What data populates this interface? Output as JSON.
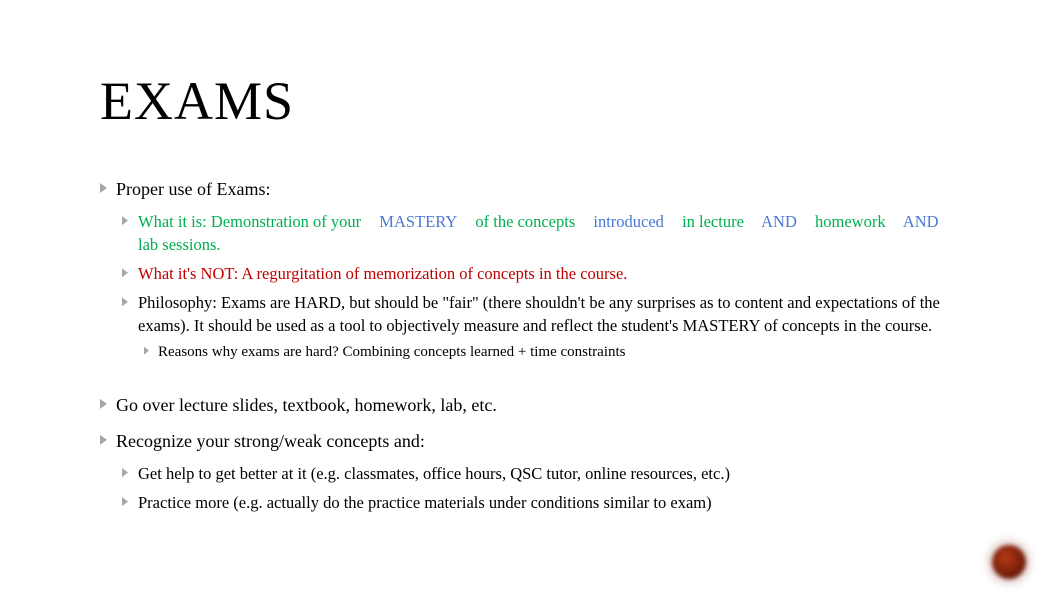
{
  "title": "EXAMS",
  "colors": {
    "green": "#00b050",
    "blue": "#4a78d4",
    "red": "#c00000",
    "bullet": "#a6a6a6",
    "text": "#000000",
    "background": "#ffffff",
    "corner_dot_center": "#b53a1a",
    "corner_dot_edge": "#4a1206"
  },
  "typography": {
    "family": "Times New Roman",
    "title_size_pt": 40,
    "lvl1_size_pt": 14,
    "lvl2_size_pt": 12,
    "lvl3_size_pt": 11
  },
  "bullets": [
    {
      "text": "Proper use of Exams:",
      "children": [
        {
          "color": "green",
          "runs": [
            {
              "t": "What it is: Demonstration of your",
              "c": "green"
            },
            {
              "t": "MASTERY",
              "c": "blue"
            },
            {
              "t": "of the concepts",
              "c": "green"
            },
            {
              "t": "introduced",
              "c": "blue"
            },
            {
              "t": "in lecture",
              "c": "green"
            },
            {
              "t": "AND",
              "c": "blue"
            },
            {
              "t": "homework",
              "c": "green"
            },
            {
              "t": "AND",
              "c": "blue"
            },
            {
              "t": "lab sessions.",
              "c": "green"
            }
          ]
        },
        {
          "color": "red",
          "text": "What it's NOT: A regurgitation of memorization of concepts in the course."
        },
        {
          "text": "Philosophy: Exams are HARD, but should be \"fair\" (there shouldn't be any surprises as to content and expectations of the exams).                  It should be used as a tool to objectively measure and reflect the student's MASTERY of concepts in the course.",
          "children": [
            {
              "text": "Reasons why exams are hard?               Combining concepts learned + time constraints"
            }
          ]
        }
      ]
    },
    {
      "gap": true
    },
    {
      "text": "Go over lecture slides, textbook, homework, lab, etc."
    },
    {
      "text": "Recognize your strong/weak concepts and:",
      "children": [
        {
          "text": "Get help to get better at it (e.g. classmates, office hours, QSC tutor, online resources, etc.)"
        },
        {
          "text": "Practice more (e.g. actually do the practice materials under conditions similar to exam)"
        }
      ]
    }
  ]
}
